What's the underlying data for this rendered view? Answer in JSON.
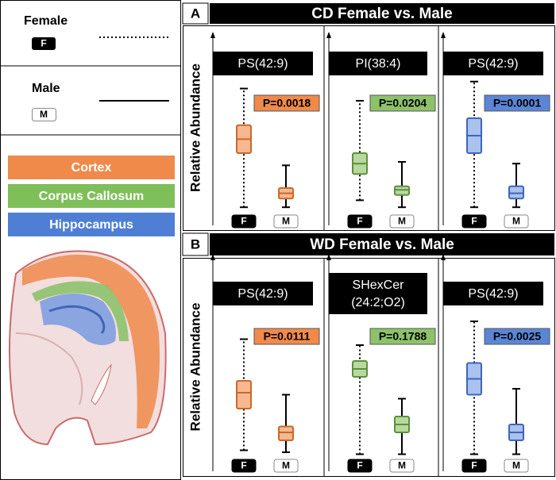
{
  "legend": {
    "female": {
      "label": "Female",
      "badge": "F"
    },
    "male": {
      "label": "Male",
      "badge": "M"
    }
  },
  "regions": [
    {
      "label": "Cortex",
      "color": "#f08a4b"
    },
    {
      "label": "Corpus Callosum",
      "color": "#7fbf5a"
    },
    {
      "label": "Hippocampus",
      "color": "#4f7fd4"
    }
  ],
  "chart_data": [
    {
      "type": "box",
      "letter": "A",
      "title": "CD Female vs. Male",
      "ylabel": "Relative Abundance",
      "ylim": [
        0,
        100
      ],
      "plots": [
        {
          "lipid": [
            "PS(42:9)"
          ],
          "p": "P=0.0018",
          "fill": "#f7b890",
          "stroke": "#c8692a",
          "pcolor": "#f08a4b",
          "boxes": [
            {
              "group": "F",
              "whislo": 4,
              "q1": 35,
              "med": 43,
              "q3": 51,
              "whishi": 72
            },
            {
              "group": "M",
              "whislo": 4,
              "q1": 9,
              "med": 12,
              "q3": 15,
              "whishi": 28
            }
          ]
        },
        {
          "lipid": [
            "PI(38:4)"
          ],
          "p": "P=0.0204",
          "fill": "#b7d99e",
          "stroke": "#5e8f3e",
          "pcolor": "#8dc26b",
          "boxes": [
            {
              "group": "F",
              "whislo": 8,
              "q1": 23,
              "med": 29,
              "q3": 35,
              "whishi": 65
            },
            {
              "group": "M",
              "whislo": 4,
              "q1": 11,
              "med": 14,
              "q3": 16,
              "whishi": 30
            }
          ]
        },
        {
          "lipid": [
            "PS(42:9)"
          ],
          "p": "P=0.0001",
          "fill": "#a9c2ee",
          "stroke": "#3f66b8",
          "pcolor": "#5b86d6",
          "boxes": [
            {
              "group": "F",
              "whislo": 4,
              "q1": 35,
              "med": 45,
              "q3": 55,
              "whishi": 76
            },
            {
              "group": "M",
              "whislo": 4,
              "q1": 9,
              "med": 12,
              "q3": 16,
              "whishi": 29
            }
          ]
        }
      ]
    },
    {
      "type": "box",
      "letter": "B",
      "title": "WD Female vs. Male",
      "ylabel": "Relative Abundance",
      "ylim": [
        0,
        100
      ],
      "plots": [
        {
          "lipid": [
            "PS(42:9)"
          ],
          "p": "P=0.0111",
          "fill": "#f7b890",
          "stroke": "#c8692a",
          "pcolor": "#f08a4b",
          "boxes": [
            {
              "group": "F",
              "whislo": 5,
              "q1": 26,
              "med": 34,
              "q3": 40,
              "whishi": 61
            },
            {
              "group": "M",
              "whislo": 4,
              "q1": 10,
              "med": 14,
              "q3": 17,
              "whishi": 33
            }
          ]
        },
        {
          "lipid": [
            "SHexCer",
            "(24:2;O2)"
          ],
          "p": "P=0.1788",
          "fill": "#b7d99e",
          "stroke": "#5e8f3e",
          "pcolor": "#8dc26b",
          "boxes": [
            {
              "group": "F",
              "whislo": 3,
              "q1": 42,
              "med": 46,
              "q3": 50,
              "whishi": 58
            },
            {
              "group": "M",
              "whislo": 3,
              "q1": 14,
              "med": 18,
              "q3": 22,
              "whishi": 31
            }
          ]
        },
        {
          "lipid": [
            "PS(42:9)"
          ],
          "p": "P=0.0025",
          "fill": "#a9c2ee",
          "stroke": "#3f66b8",
          "pcolor": "#5b86d6",
          "boxes": [
            {
              "group": "F",
              "whislo": 3,
              "q1": 33,
              "med": 41,
              "q3": 49,
              "whishi": 70
            },
            {
              "group": "M",
              "whislo": 3,
              "q1": 10,
              "med": 14,
              "q3": 18,
              "whishi": 36
            }
          ]
        }
      ]
    }
  ]
}
